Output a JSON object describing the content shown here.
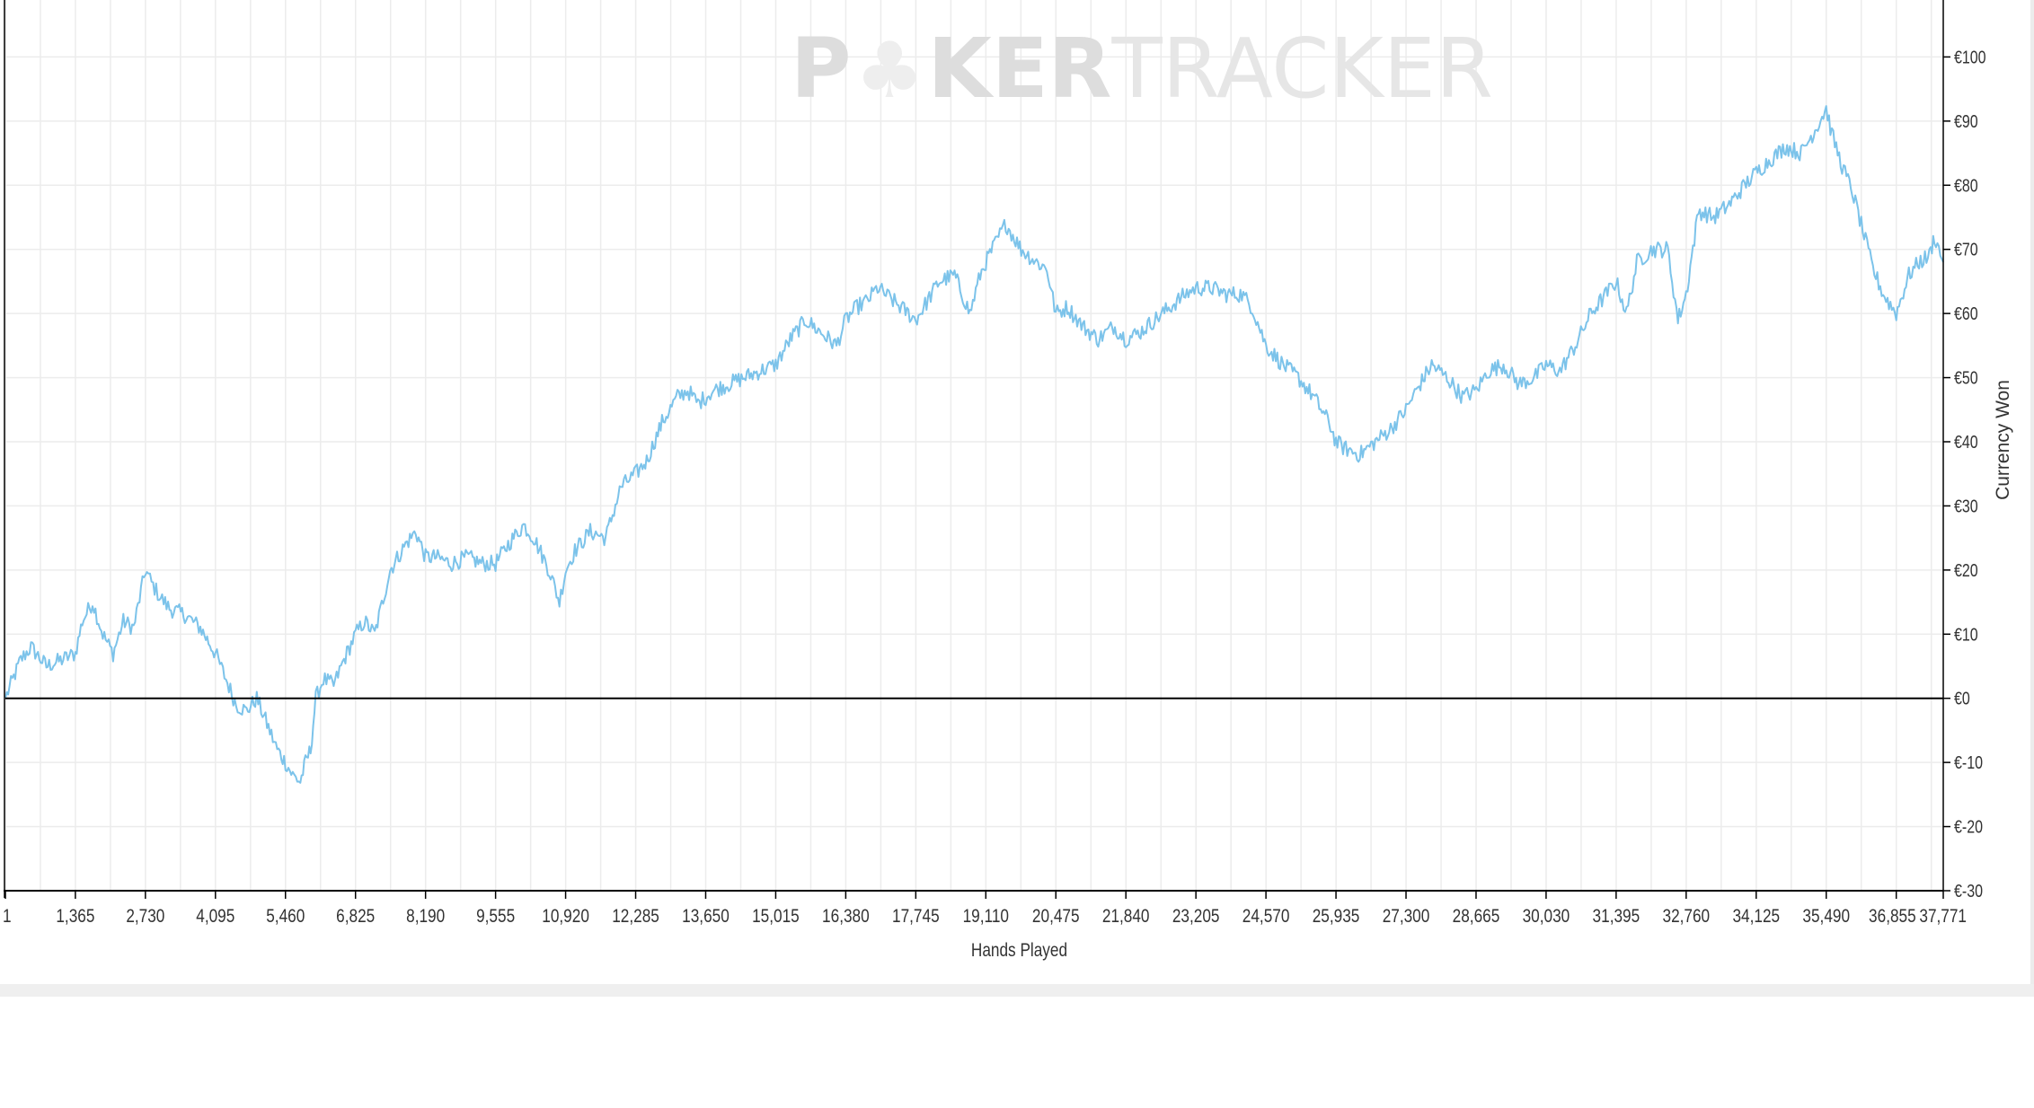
{
  "watermark": {
    "text_left": "P",
    "text_mid": "KER",
    "text_right": "TRACKER"
  },
  "chart_data": {
    "type": "line",
    "title": "",
    "xlabel": "Hands Played",
    "ylabel": "Currency Won",
    "xlim": [
      1,
      37771
    ],
    "ylim": [
      -30,
      110
    ],
    "x_ticks": [
      {
        "value": 1,
        "label": "1"
      },
      {
        "value": 1365,
        "label": "1,365"
      },
      {
        "value": 2730,
        "label": "2,730"
      },
      {
        "value": 4095,
        "label": "4,095"
      },
      {
        "value": 5460,
        "label": "5,460"
      },
      {
        "value": 6825,
        "label": "6,825"
      },
      {
        "value": 8190,
        "label": "8,190"
      },
      {
        "value": 9555,
        "label": "9,555"
      },
      {
        "value": 10920,
        "label": "10,920"
      },
      {
        "value": 12285,
        "label": "12,285"
      },
      {
        "value": 13650,
        "label": "13,650"
      },
      {
        "value": 15015,
        "label": "15,015"
      },
      {
        "value": 16380,
        "label": "16,380"
      },
      {
        "value": 17745,
        "label": "17,745"
      },
      {
        "value": 19110,
        "label": "19,110"
      },
      {
        "value": 20475,
        "label": "20,475"
      },
      {
        "value": 21840,
        "label": "21,840"
      },
      {
        "value": 23205,
        "label": "23,205"
      },
      {
        "value": 24570,
        "label": "24,570"
      },
      {
        "value": 25935,
        "label": "25,935"
      },
      {
        "value": 27300,
        "label": "27,300"
      },
      {
        "value": 28665,
        "label": "28,665"
      },
      {
        "value": 30030,
        "label": "30,030"
      },
      {
        "value": 31395,
        "label": "31,395"
      },
      {
        "value": 32760,
        "label": "32,760"
      },
      {
        "value": 34125,
        "label": "34,125"
      },
      {
        "value": 35490,
        "label": "35,490"
      },
      {
        "value": 36855,
        "label": "36,855"
      },
      {
        "value": 37771,
        "label": "37,771"
      }
    ],
    "y_ticks": [
      {
        "value": 100,
        "label": "€100"
      },
      {
        "value": 90,
        "label": "€90"
      },
      {
        "value": 80,
        "label": "€80"
      },
      {
        "value": 70,
        "label": "€70"
      },
      {
        "value": 60,
        "label": "€60"
      },
      {
        "value": 50,
        "label": "€50"
      },
      {
        "value": 40,
        "label": "€40"
      },
      {
        "value": 30,
        "label": "€30"
      },
      {
        "value": 20,
        "label": "€20"
      },
      {
        "value": 10,
        "label": "€10"
      },
      {
        "value": 0,
        "label": "€0"
      },
      {
        "value": -10,
        "label": "€-10"
      },
      {
        "value": -20,
        "label": "€-20"
      },
      {
        "value": -30,
        "label": "€-30"
      }
    ],
    "grid": true,
    "zero_line": true,
    "series": [
      {
        "color": "#7cc3ea",
        "x": [
          1,
          300,
          500,
          800,
          1100,
          1365,
          1500,
          1700,
          1900,
          2100,
          2300,
          2500,
          2730,
          2850,
          3000,
          3200,
          3500,
          3800,
          4095,
          4300,
          4500,
          4700,
          4900,
          5100,
          5300,
          5460,
          5600,
          5750,
          5850,
          5950,
          6050,
          6200,
          6400,
          6600,
          6825,
          7000,
          7200,
          7500,
          7800,
          8000,
          8190,
          8400,
          8700,
          9000,
          9300,
          9555,
          9800,
          10100,
          10300,
          10600,
          10800,
          10920,
          11100,
          11400,
          11700,
          12000,
          12285,
          12500,
          12800,
          13100,
          13300,
          13500,
          13650,
          13800,
          14100,
          14400,
          14700,
          15015,
          15300,
          15600,
          15900,
          16200,
          16380,
          16600,
          16800,
          17000,
          17300,
          17600,
          17745,
          17900,
          18200,
          18500,
          18800,
          19000,
          19110,
          19300,
          19500,
          19800,
          20100,
          20300,
          20475,
          20700,
          21000,
          21300,
          21600,
          21840,
          22100,
          22400,
          22700,
          23000,
          23205,
          23500,
          23800,
          24100,
          24300,
          24570,
          24900,
          25200,
          25500,
          25800,
          25935,
          26100,
          26400,
          26700,
          27000,
          27300,
          27500,
          27800,
          28100,
          28400,
          28665,
          28900,
          29200,
          29500,
          29800,
          30030,
          30300,
          30600,
          30900,
          31200,
          31395,
          31600,
          31800,
          32100,
          32400,
          32600,
          32760,
          33000,
          33300,
          33600,
          33900,
          34125,
          34400,
          34700,
          35000,
          35300,
          35490,
          35600,
          35800,
          36000,
          36200,
          36400,
          36600,
          36855,
          37100,
          37300,
          37500,
          37600,
          37771
        ],
        "y": [
          0,
          6,
          8,
          5,
          6,
          7,
          12,
          15,
          10,
          7,
          12,
          11,
          20,
          18,
          16,
          14,
          13,
          11,
          7,
          3,
          -1,
          -2,
          0,
          -4,
          -8,
          -10,
          -12,
          -13,
          -10,
          -8,
          0,
          3,
          2,
          6,
          10,
          12,
          10,
          20,
          24,
          26,
          22,
          22,
          21,
          22,
          21,
          21,
          24,
          27,
          25,
          20,
          15,
          20,
          23,
          26,
          25,
          33,
          35,
          37,
          43,
          47,
          48,
          46,
          47,
          48,
          49,
          50,
          51,
          52,
          56,
          59,
          57,
          55,
          59,
          61,
          62,
          64,
          62,
          60,
          59,
          61,
          65,
          66,
          60,
          66,
          68,
          71,
          74,
          70,
          68,
          67,
          60,
          61,
          58,
          56,
          58,
          56,
          57,
          59,
          61,
          63,
          64,
          64,
          63,
          63,
          61,
          55,
          52,
          50,
          47,
          43,
          40,
          39,
          38,
          40,
          42,
          45,
          48,
          52,
          50,
          47,
          48,
          51,
          52,
          49,
          50,
          52,
          51,
          55,
          60,
          63,
          65,
          60,
          68,
          70,
          70,
          59,
          63,
          76,
          75,
          77,
          80,
          82,
          84,
          86,
          85,
          89,
          92,
          88,
          83,
          79,
          73,
          67,
          63,
          60,
          66,
          68,
          69,
          72,
          68
        ]
      }
    ]
  }
}
